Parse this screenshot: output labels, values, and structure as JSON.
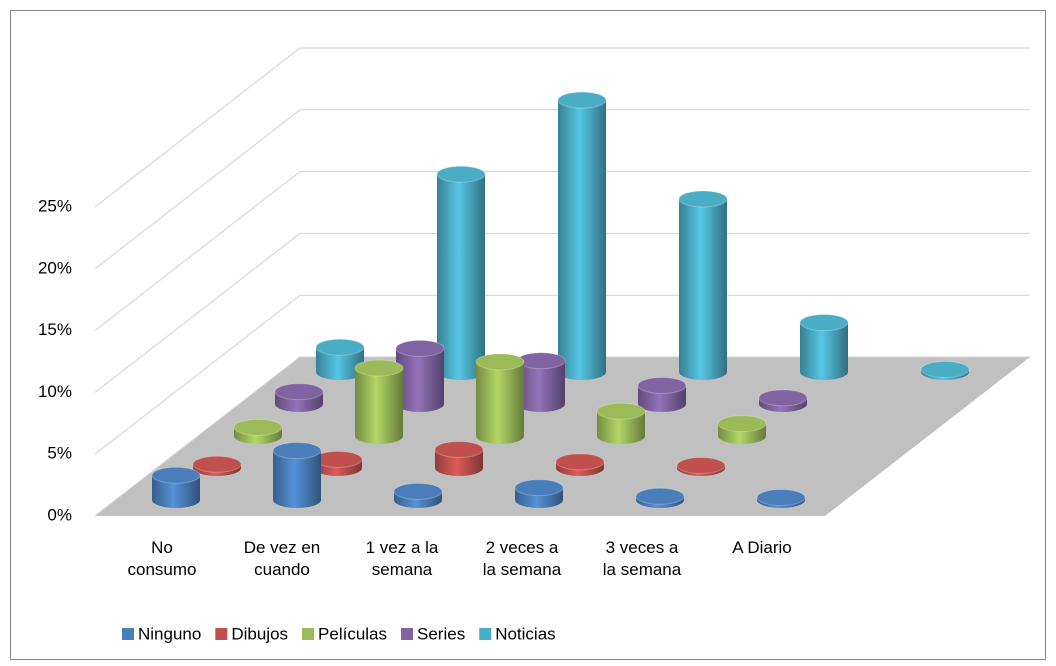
{
  "chart_data": {
    "type": "bar3d-cylinder",
    "categories": [
      "No consumo",
      "De vez en cuando",
      "1 vez a la semana",
      "2 veces a la semana",
      "3 veces a la semana",
      "A Diario"
    ],
    "series": [
      {
        "name": "Ninguno",
        "color": "#4a7ebb",
        "values": [
          2,
          4,
          0.7,
          1,
          0.3,
          0.2
        ]
      },
      {
        "name": "Dibujos",
        "color": "#c0504d",
        "values": [
          0.3,
          0.7,
          1.5,
          0.5,
          0.2,
          null
        ]
      },
      {
        "name": "Películas",
        "color": "#9bbb59",
        "values": [
          0.7,
          5.5,
          6,
          2,
          1,
          null
        ]
      },
      {
        "name": "Series",
        "color": "#8064a2",
        "values": [
          1,
          4.5,
          3.5,
          1.5,
          0.5,
          null
        ]
      },
      {
        "name": "Noticias",
        "color": "#4bacc6",
        "values": [
          2,
          16,
          22,
          14,
          4,
          0.2
        ]
      }
    ],
    "ylim": [
      0,
      25
    ],
    "yticks": [
      {
        "value": 0,
        "label": "0%"
      },
      {
        "value": 5,
        "label": "5%"
      },
      {
        "value": 10,
        "label": "10%"
      },
      {
        "value": 15,
        "label": "15%"
      },
      {
        "value": 20,
        "label": "20%"
      },
      {
        "value": 25,
        "label": "25%"
      }
    ],
    "grid": true,
    "legend": "bottom"
  }
}
